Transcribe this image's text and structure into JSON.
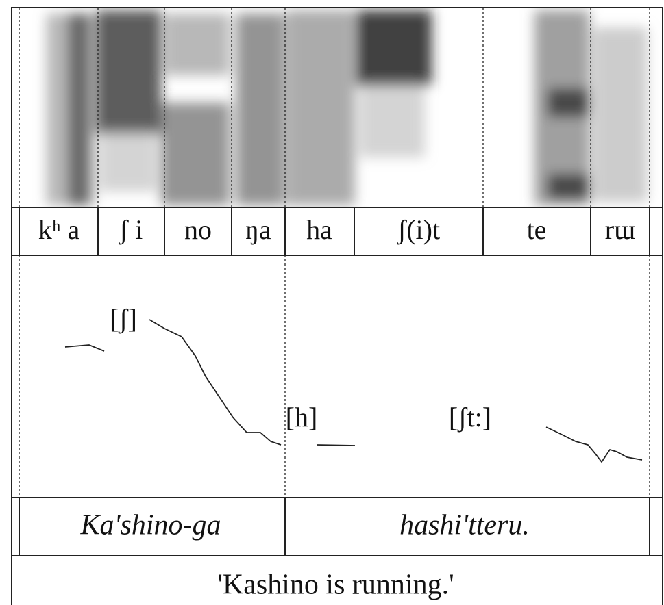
{
  "segments": [
    "kʰ a",
    "ʃ i",
    "no",
    "ŋa",
    "ha",
    "ʃ(i)t",
    "te",
    "rɯ"
  ],
  "pitch_labels": [
    "[ʃ]",
    "[h]",
    "[ʃt:]"
  ],
  "words": [
    "Ka'shino-ga",
    "hashi'tteru."
  ],
  "translation": "'Kashino is running.'"
}
